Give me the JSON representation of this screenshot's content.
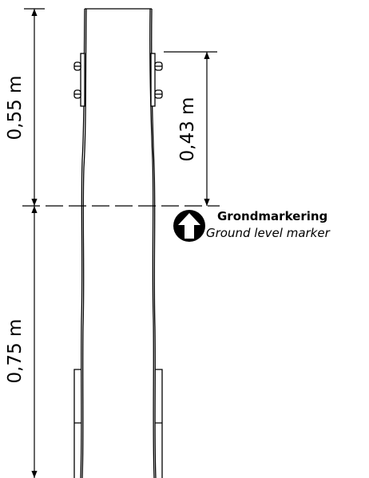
{
  "dimensions": {
    "upper_height": "0,55 m",
    "lower_depth": "0,75 m",
    "bracket_height": "0,43 m"
  },
  "legend": {
    "title": "Grondmarkering",
    "subtitle": "Ground level marker"
  }
}
